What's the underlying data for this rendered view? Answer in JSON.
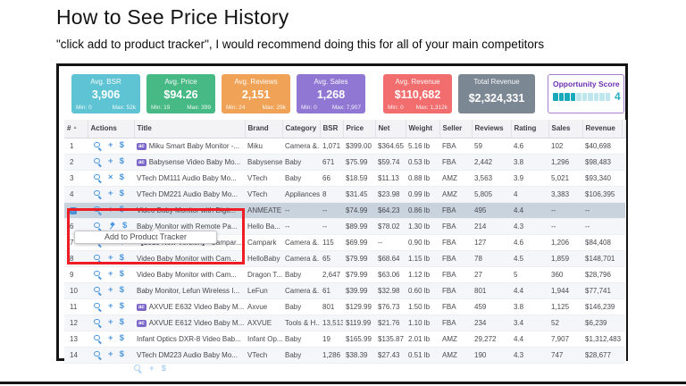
{
  "slide": {
    "title": "How to See Price History",
    "subtitle": "\"click add to product tracker\", I would recommend doing this for all of your main competitors"
  },
  "stats_cards": [
    {
      "label": "Avg. BSR",
      "value": "3,906",
      "min": "Min: 0",
      "max": "Max: 52k",
      "color": "#5ec4d3"
    },
    {
      "label": "Avg. Price",
      "value": "$94.26",
      "min": "Min: 19",
      "max": "Max: 399",
      "color": "#47b985"
    },
    {
      "label": "Avg. Reviews",
      "value": "2,151",
      "min": "Min: 24",
      "max": "Max: 29k",
      "color": "#f0a357"
    },
    {
      "label": "Avg. Sales",
      "value": "1,268",
      "min": "Min: 0",
      "max": "Max: 7,907",
      "color": "#9077d3"
    },
    {
      "label": "Avg. Revenue",
      "value": "$110,682",
      "min": "Min: 0",
      "max": "Max: 1,312k",
      "color": "#f26d6d"
    },
    {
      "label": "Total Revenue",
      "value": "$2,324,331",
      "color": "#7c8794"
    }
  ],
  "opportunity": {
    "label": "Opportunity Score",
    "score": "4",
    "segments_filled": 4,
    "segments_total": 10,
    "filled_color": "#18a9bb",
    "empty_color": "#bde7ed"
  },
  "tooltip": {
    "text": "Add to Product Tracker"
  },
  "table": {
    "headers": [
      "#",
      "Actions",
      "Title",
      "Brand",
      "Category",
      "BSR",
      "Price",
      "Net",
      "Weight",
      "Seller",
      "Reviews",
      "Rating",
      "Sales",
      "Revenue"
    ],
    "partial_header": "R",
    "sort_icon": "▲",
    "badge_label": "ac",
    "rows": [
      {
        "num": "1",
        "actions": [
          "search",
          "add",
          "fees"
        ],
        "badge": true,
        "title": "Miku Smart Baby Monitor -...",
        "brand": "Miku",
        "category": "Camera &...",
        "bsr": "1,071",
        "price": "$399.00",
        "net": "$364.65",
        "weight": "5.16 lb",
        "seller": "FBA",
        "reviews": "59",
        "rating": "4.6",
        "sales": "102",
        "revenue": "$40,698"
      },
      {
        "num": "2",
        "actions": [
          "search",
          "add",
          "fees"
        ],
        "badge": true,
        "title": "Babysense Video Baby Mo...",
        "brand": "Babysense",
        "category": "Baby",
        "bsr": "671",
        "price": "$75.99",
        "net": "$59.74",
        "weight": "0.53 lb",
        "seller": "FBA",
        "reviews": "2,442",
        "rating": "3.8",
        "sales": "1,296",
        "revenue": "$98,483"
      },
      {
        "num": "3",
        "actions": [
          "search",
          "remove",
          "fees"
        ],
        "badge": false,
        "title": "VTech DM111 Audio Baby Mo...",
        "brand": "VTech",
        "category": "Baby",
        "bsr": "66",
        "price": "$18.59",
        "net": "$11.13",
        "weight": "0.88 lb",
        "seller": "AMZ",
        "reviews": "3,563",
        "rating": "3.9",
        "sales": "5,021",
        "revenue": "$93,340"
      },
      {
        "num": "4",
        "actions": [
          "search",
          "add",
          "fees"
        ],
        "badge": false,
        "title": "VTech DM221 Audio Baby Mo...",
        "brand": "VTech",
        "category": "Appliances",
        "bsr": "8",
        "price": "$31.45",
        "net": "$23.98",
        "weight": "0.99 lb",
        "seller": "AMZ",
        "reviews": "5,805",
        "rating": "4",
        "sales": "3,383",
        "revenue": "$106,395"
      },
      {
        "num": "",
        "checkbox": true,
        "selected": true,
        "actions": [
          "search",
          "add",
          "fees"
        ],
        "badge": false,
        "title": "Video Baby Monitor with Digit...",
        "brand": "ANMEATE",
        "category": "--",
        "bsr": "--",
        "price": "$74.99",
        "net": "$64.23",
        "weight": "0.86 lb",
        "seller": "FBA",
        "reviews": "495",
        "rating": "4.4",
        "sales": "--",
        "revenue": "--"
      },
      {
        "num": "6",
        "actions": [
          "search",
          "pin",
          "fees"
        ],
        "badge": false,
        "title": "Baby Monitor with Remote Pa...",
        "brand": "Hello Ba...",
        "category": "--",
        "bsr": "--",
        "price": "$89.99",
        "net": "$78.02",
        "weight": "1.30 lb",
        "seller": "FBA",
        "reviews": "214",
        "rating": "4.3",
        "sales": "--",
        "revenue": "--"
      },
      {
        "num": "7",
        "actions": [
          "search",
          "add",
          "fees"
        ],
        "badge": false,
        "title": "【2019 New Version】 Campar...",
        "brand": "Campark",
        "category": "Camera &...",
        "bsr": "115",
        "price": "$69.99",
        "net": "--",
        "weight": "0.90 lb",
        "seller": "FBA",
        "reviews": "127",
        "rating": "4.6",
        "sales": "1,206",
        "revenue": "$84,408"
      },
      {
        "num": "8",
        "actions": [
          "search",
          "add",
          "fees"
        ],
        "badge": false,
        "title": "Video Baby Monitor with Cam...",
        "brand": "HelloBaby",
        "category": "Camera &...",
        "bsr": "65",
        "price": "$79.99",
        "net": "$68.64",
        "weight": "1.15 lb",
        "seller": "FBA",
        "reviews": "78",
        "rating": "4.5",
        "sales": "1,859",
        "revenue": "$148,701"
      },
      {
        "num": "9",
        "actions": [
          "search",
          "add",
          "fees"
        ],
        "badge": false,
        "title": "Video Baby Monitor with Cam...",
        "brand": "Dragon T...",
        "category": "Baby",
        "bsr": "2,647",
        "price": "$79.99",
        "net": "$63.06",
        "weight": "1.12 lb",
        "seller": "FBA",
        "reviews": "27",
        "rating": "5",
        "sales": "360",
        "revenue": "$28,796"
      },
      {
        "num": "10",
        "actions": [
          "search",
          "add",
          "fees"
        ],
        "badge": false,
        "title": "Baby Monitor, Lefun Wireless I...",
        "brand": "LeFun",
        "category": "Camera &...",
        "bsr": "61",
        "price": "$39.99",
        "net": "$32.98",
        "weight": "0.60 lb",
        "seller": "FBA",
        "reviews": "801",
        "rating": "4.4",
        "sales": "1,944",
        "revenue": "$77,741"
      },
      {
        "num": "11",
        "actions": [
          "search",
          "add",
          "fees"
        ],
        "badge": true,
        "title": "AXVUE E632 Video Baby M...",
        "brand": "Axvue",
        "category": "Baby",
        "bsr": "801",
        "price": "$129.99",
        "net": "$76.73",
        "weight": "1.50 lb",
        "seller": "FBA",
        "reviews": "459",
        "rating": "3.8",
        "sales": "1,125",
        "revenue": "$146,239"
      },
      {
        "num": "12",
        "actions": [
          "search",
          "add",
          "fees"
        ],
        "badge": true,
        "title": "AXVUE E612 Video Baby M...",
        "brand": "AXVUE",
        "category": "Tools & H...",
        "bsr": "13,513",
        "price": "$119.99",
        "net": "$21.76",
        "weight": "1.10 lb",
        "seller": "FBA",
        "reviews": "234",
        "rating": "3.4",
        "sales": "52",
        "revenue": "$6,239"
      },
      {
        "num": "13",
        "actions": [
          "search",
          "add",
          "fees"
        ],
        "badge": false,
        "title": "Infant Optics DXR-8 Video Bab...",
        "brand": "Infant Op...",
        "category": "Baby",
        "bsr": "19",
        "price": "$165.99",
        "net": "$135.87",
        "weight": "2.01 lb",
        "seller": "AMZ",
        "reviews": "29,272",
        "rating": "4.4",
        "sales": "7,907",
        "revenue": "$1,312,483"
      },
      {
        "num": "14",
        "actions": [
          "search",
          "add",
          "fees"
        ],
        "badge": false,
        "title": "VTech DM223 Audio Baby Mo...",
        "brand": "VTech",
        "category": "Baby",
        "bsr": "1,286",
        "price": "$38.39",
        "net": "$27.43",
        "weight": "0.51 lb",
        "seller": "AMZ",
        "reviews": "190",
        "rating": "4.3",
        "sales": "747",
        "revenue": "$28,677"
      }
    ]
  }
}
